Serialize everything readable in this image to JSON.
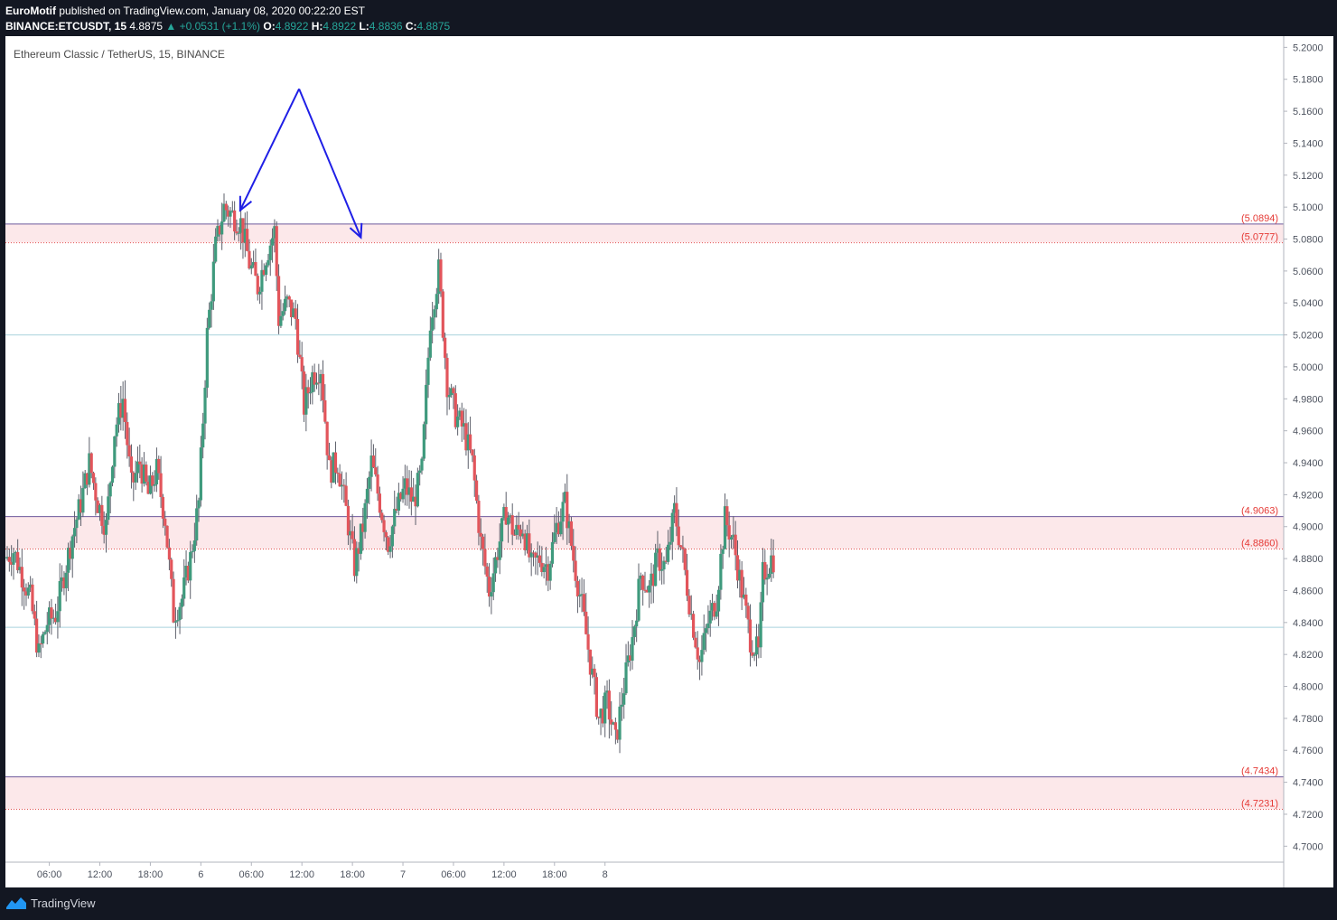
{
  "header": {
    "publisher": "EuroMotif",
    "publisher_text": "published on TradingView.com, January 08, 2020 00:22:20 EST",
    "symbol": "BINANCE:ETCUSDT, 15",
    "last": "4.8875",
    "change": "▲ +0.0531 (+1.1%)",
    "open_label": "O:",
    "open": "4.8922",
    "high_label": "H:",
    "high": "4.8922",
    "low_label": "L:",
    "low": "4.8836",
    "close_label": "C:",
    "close": "4.8875"
  },
  "chart_title": "Ethereum Classic / TetherUS, 15, BINANCE",
  "footer": {
    "brand": "TradingView"
  },
  "colors": {
    "up": "#3f9a7d",
    "down": "#e2555b",
    "zone_fill": "#fce8ea",
    "zone_border": "#6e5a9c",
    "zone_dotted": "#e25353",
    "hline": "#a9d3dd",
    "arrow": "#1f1fe6",
    "label_red": "#e53935"
  },
  "chart_data": {
    "type": "candlestick",
    "y_range": [
      4.69,
      5.207
    ],
    "y_ticks": [
      "5.2000",
      "5.1800",
      "5.1600",
      "5.1400",
      "5.1200",
      "5.1000",
      "5.0800",
      "5.0600",
      "5.0400",
      "5.0200",
      "5.0000",
      "4.9800",
      "4.9600",
      "4.9400",
      "4.9200",
      "4.9000",
      "4.8800",
      "4.8600",
      "4.8400",
      "4.8200",
      "4.8000",
      "4.7800",
      "4.7600",
      "4.7400",
      "4.7200",
      "4.7000"
    ],
    "x_ticks": [
      "06:00",
      "12:00",
      "18:00",
      "6",
      "06:00",
      "12:00",
      "18:00",
      "7",
      "06:00",
      "12:00",
      "18:00",
      "8"
    ],
    "zones": [
      {
        "top": 5.0894,
        "bottom": 5.0777,
        "top_label": "(5.0894)",
        "bottom_label": "(5.0777)"
      },
      {
        "top": 4.9063,
        "bottom": 4.886,
        "top_label": "(4.9063)",
        "bottom_label": "(4.8860)"
      },
      {
        "top": 4.7434,
        "bottom": 4.7231,
        "top_label": "(4.7434)",
        "bottom_label": "(4.7231)"
      }
    ],
    "horizontal_lines": [
      5.02,
      4.837
    ],
    "arrows": [
      {
        "from": [
          5.174,
          "2020-01-06 11:40"
        ],
        "to": [
          5.098,
          "2020-01-06 04:40"
        ]
      },
      {
        "from": [
          5.174,
          "2020-01-06 11:40"
        ],
        "to": [
          5.081,
          "2020-01-06 19:00"
        ]
      }
    ],
    "anchors": [
      [
        0,
        4.88
      ],
      [
        4,
        4.885
      ],
      [
        8,
        4.87
      ],
      [
        12,
        4.855
      ],
      [
        16,
        4.82
      ],
      [
        20,
        4.84
      ],
      [
        24,
        4.845
      ],
      [
        28,
        4.87
      ],
      [
        32,
        4.895
      ],
      [
        36,
        4.915
      ],
      [
        40,
        4.94
      ],
      [
        44,
        4.915
      ],
      [
        48,
        4.9
      ],
      [
        52,
        4.96
      ],
      [
        56,
        4.98
      ],
      [
        60,
        4.925
      ],
      [
        64,
        4.94
      ],
      [
        68,
        4.92
      ],
      [
        72,
        4.935
      ],
      [
        76,
        4.905
      ],
      [
        80,
        4.845
      ],
      [
        84,
        4.855
      ],
      [
        88,
        4.88
      ],
      [
        92,
        4.915
      ],
      [
        96,
        5.02
      ],
      [
        100,
        5.075
      ],
      [
        104,
        5.1
      ],
      [
        108,
        5.095
      ],
      [
        112,
        5.09
      ],
      [
        116,
        5.065
      ],
      [
        120,
        5.05
      ],
      [
        124,
        5.07
      ],
      [
        128,
        5.085
      ],
      [
        130,
        5.03
      ],
      [
        134,
        5.04
      ],
      [
        138,
        5.03
      ],
      [
        142,
        4.975
      ],
      [
        146,
        4.995
      ],
      [
        150,
        5.0
      ],
      [
        154,
        4.935
      ],
      [
        158,
        4.94
      ],
      [
        162,
        4.91
      ],
      [
        166,
        4.875
      ],
      [
        170,
        4.9
      ],
      [
        174,
        4.94
      ],
      [
        178,
        4.915
      ],
      [
        182,
        4.89
      ],
      [
        186,
        4.91
      ],
      [
        190,
        4.925
      ],
      [
        194,
        4.915
      ],
      [
        198,
        4.935
      ],
      [
        202,
        5.03
      ],
      [
        206,
        5.06
      ],
      [
        210,
        4.99
      ],
      [
        214,
        4.97
      ],
      [
        218,
        4.96
      ],
      [
        222,
        4.94
      ],
      [
        226,
        4.89
      ],
      [
        230,
        4.86
      ],
      [
        234,
        4.885
      ],
      [
        238,
        4.91
      ],
      [
        242,
        4.895
      ],
      [
        246,
        4.9
      ],
      [
        250,
        4.875
      ],
      [
        254,
        4.88
      ],
      [
        258,
        4.875
      ],
      [
        262,
        4.9
      ],
      [
        266,
        4.915
      ],
      [
        270,
        4.88
      ],
      [
        274,
        4.85
      ],
      [
        278,
        4.815
      ],
      [
        282,
        4.78
      ],
      [
        286,
        4.79
      ],
      [
        290,
        4.765
      ],
      [
        294,
        4.8
      ],
      [
        298,
        4.83
      ],
      [
        302,
        4.87
      ],
      [
        306,
        4.86
      ],
      [
        310,
        4.88
      ],
      [
        314,
        4.875
      ],
      [
        318,
        4.91
      ],
      [
        322,
        4.88
      ],
      [
        326,
        4.845
      ],
      [
        330,
        4.815
      ],
      [
        334,
        4.84
      ],
      [
        338,
        4.855
      ],
      [
        342,
        4.905
      ],
      [
        346,
        4.89
      ],
      [
        350,
        4.86
      ],
      [
        354,
        4.83
      ],
      [
        358,
        4.82
      ],
      [
        360,
        4.87
      ],
      [
        364,
        4.88
      ]
    ]
  }
}
